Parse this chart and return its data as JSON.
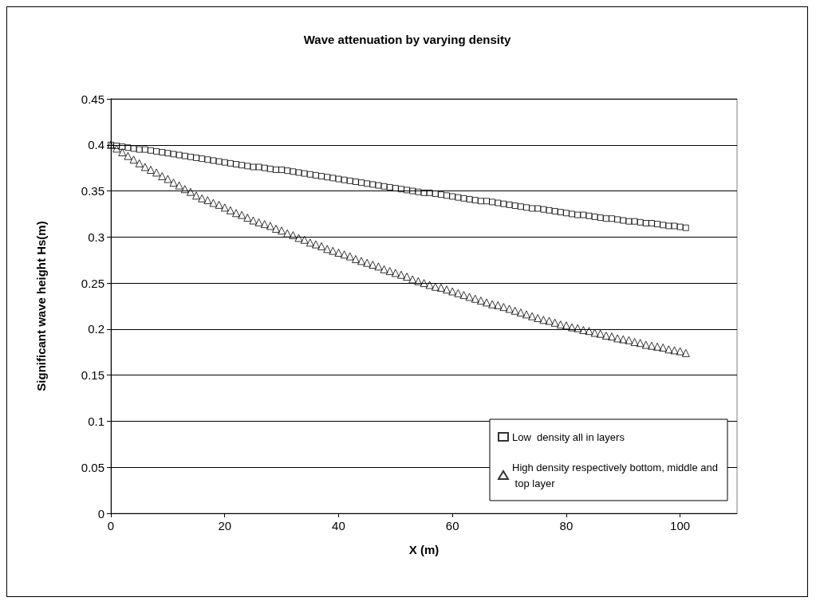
{
  "chart_data": {
    "type": "scatter",
    "title": "Wave attenuation by varying density",
    "xlabel": "X (m)",
    "ylabel": "Significant wave height Hs(m)",
    "x": [
      0,
      1,
      2,
      3,
      4,
      5,
      6,
      7,
      8,
      9,
      10,
      11,
      12,
      13,
      14,
      15,
      16,
      17,
      18,
      19,
      20,
      21,
      22,
      23,
      24,
      25,
      26,
      27,
      28,
      29,
      30,
      31,
      32,
      33,
      34,
      35,
      36,
      37,
      38,
      39,
      40,
      41,
      42,
      43,
      44,
      45,
      46,
      47,
      48,
      49,
      50,
      51,
      52,
      53,
      54,
      55,
      56,
      57,
      58,
      59,
      60,
      61,
      62,
      63,
      64,
      65,
      66,
      67,
      68,
      69,
      70,
      71,
      72,
      73,
      74,
      75,
      76,
      77,
      78,
      79,
      80,
      81,
      82,
      83,
      84,
      85,
      86,
      87,
      88,
      89,
      90,
      91,
      92,
      93,
      94,
      95,
      96,
      97,
      98,
      99,
      100,
      101
    ],
    "series": [
      {
        "name": "Low  density all in layers",
        "color": "#000000",
        "marker": "square",
        "values": [
          0.4,
          0.399,
          0.398,
          0.397,
          0.396,
          0.395,
          0.395,
          0.394,
          0.393,
          0.392,
          0.391,
          0.39,
          0.389,
          0.388,
          0.387,
          0.386,
          0.385,
          0.384,
          0.383,
          0.382,
          0.381,
          0.38,
          0.379,
          0.378,
          0.377,
          0.376,
          0.376,
          0.375,
          0.374,
          0.373,
          0.373,
          0.372,
          0.371,
          0.37,
          0.369,
          0.368,
          0.367,
          0.366,
          0.365,
          0.364,
          0.363,
          0.362,
          0.361,
          0.36,
          0.359,
          0.358,
          0.357,
          0.356,
          0.355,
          0.354,
          0.353,
          0.352,
          0.351,
          0.35,
          0.349,
          0.348,
          0.348,
          0.347,
          0.346,
          0.345,
          0.344,
          0.343,
          0.342,
          0.341,
          0.34,
          0.339,
          0.339,
          0.338,
          0.337,
          0.336,
          0.335,
          0.334,
          0.333,
          0.332,
          0.331,
          0.331,
          0.33,
          0.329,
          0.328,
          0.327,
          0.326,
          0.325,
          0.324,
          0.324,
          0.323,
          0.322,
          0.321,
          0.32,
          0.32,
          0.319,
          0.318,
          0.317,
          0.317,
          0.316,
          0.315,
          0.315,
          0.314,
          0.313,
          0.312,
          0.312,
          0.311,
          0.31
        ]
      },
      {
        "name": "High density respectively bottom, middle and top layer",
        "color": "#000000",
        "marker": "triangle",
        "values": [
          0.4,
          0.396,
          0.392,
          0.388,
          0.384,
          0.38,
          0.376,
          0.373,
          0.37,
          0.366,
          0.363,
          0.359,
          0.356,
          0.352,
          0.349,
          0.345,
          0.342,
          0.34,
          0.337,
          0.335,
          0.332,
          0.329,
          0.326,
          0.324,
          0.321,
          0.318,
          0.316,
          0.314,
          0.312,
          0.309,
          0.307,
          0.304,
          0.302,
          0.299,
          0.297,
          0.294,
          0.292,
          0.29,
          0.287,
          0.285,
          0.283,
          0.281,
          0.279,
          0.276,
          0.274,
          0.272,
          0.27,
          0.268,
          0.265,
          0.263,
          0.261,
          0.259,
          0.257,
          0.254,
          0.252,
          0.25,
          0.248,
          0.246,
          0.245,
          0.243,
          0.241,
          0.239,
          0.237,
          0.235,
          0.233,
          0.231,
          0.229,
          0.227,
          0.226,
          0.224,
          0.222,
          0.22,
          0.218,
          0.216,
          0.214,
          0.212,
          0.21,
          0.209,
          0.207,
          0.205,
          0.204,
          0.202,
          0.201,
          0.199,
          0.198,
          0.196,
          0.195,
          0.193,
          0.192,
          0.19,
          0.189,
          0.188,
          0.186,
          0.185,
          0.183,
          0.182,
          0.181,
          0.18,
          0.178,
          0.177,
          0.176,
          0.174
        ]
      }
    ],
    "xlim": [
      0,
      110
    ],
    "xticks": [
      0,
      20,
      40,
      60,
      80,
      100
    ],
    "ylim": [
      0,
      0.45
    ],
    "yticks": [
      0,
      0.05,
      0.1,
      0.15,
      0.2,
      0.25,
      0.3,
      0.35,
      0.4,
      0.45
    ],
    "grid": "y",
    "legend": "bottom right"
  }
}
